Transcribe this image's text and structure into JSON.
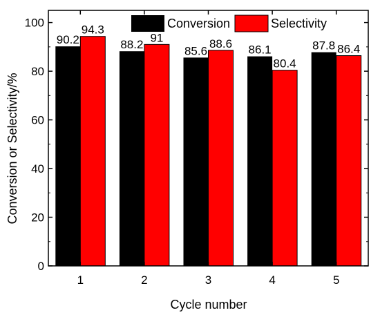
{
  "chart_data": {
    "type": "bar",
    "categories": [
      "1",
      "2",
      "3",
      "4",
      "5"
    ],
    "series": [
      {
        "name": "Conversion",
        "color": "#000000",
        "values": [
          90.2,
          88.2,
          85.6,
          86.1,
          87.8
        ]
      },
      {
        "name": "Selectivity",
        "color": "#ff0000",
        "values": [
          94.3,
          91,
          88.6,
          80.4,
          86.4
        ]
      }
    ],
    "data_labels": [
      [
        "90.2",
        "88.2",
        "85.6",
        "86.1",
        "87.8"
      ],
      [
        "94.3",
        "91",
        "88.6",
        "80.4",
        "86.4"
      ]
    ],
    "xlabel": "Cycle number",
    "ylabel": "Conversion or Selectivity/%",
    "ylim": [
      0,
      105
    ],
    "yticks": [
      "0",
      "20",
      "40",
      "60",
      "80",
      "100"
    ],
    "legend_position": "top-center",
    "grid": false
  }
}
